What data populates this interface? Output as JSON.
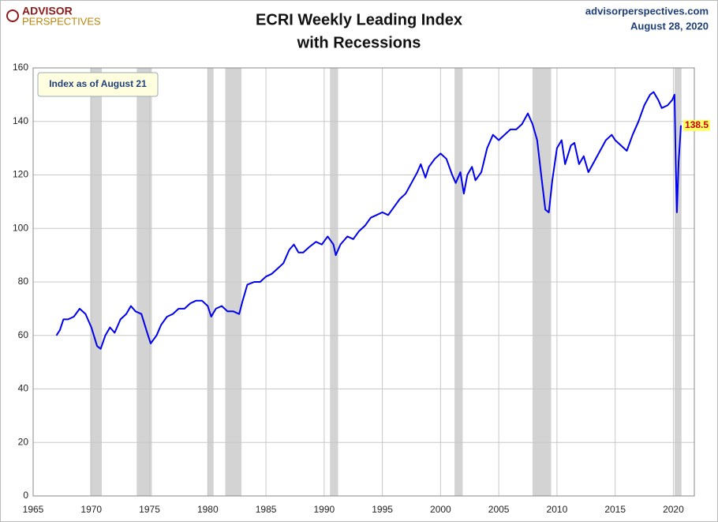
{
  "chart_data": {
    "type": "line",
    "logo": {
      "line1": "ADVISOR",
      "line2": "PERSPECTIVES"
    },
    "title": "ECRI Weekly Leading Index",
    "subtitle": "with Recessions",
    "source": "advisorperspectives.com",
    "date": "August 28, 2020",
    "annotation": "Index as of August 21",
    "xlim": [
      1965,
      2021.8
    ],
    "xticks": [
      1965,
      1970,
      1975,
      1980,
      1985,
      1990,
      1995,
      2000,
      2005,
      2010,
      2015,
      2020
    ],
    "ylim": [
      0,
      160
    ],
    "yticks": [
      0,
      20,
      40,
      60,
      80,
      100,
      120,
      140,
      160
    ],
    "grid": true,
    "recession_color": "#d3d3d3",
    "recessions": [
      [
        1969.9,
        1970.9
      ],
      [
        1973.9,
        1975.2
      ],
      [
        1980.0,
        1980.5
      ],
      [
        1981.5,
        1982.9
      ],
      [
        1990.5,
        1991.2
      ],
      [
        2001.2,
        2001.9
      ],
      [
        2007.9,
        2009.5
      ],
      [
        2020.1,
        2020.7
      ]
    ],
    "series": [
      {
        "name": "ECRI Weekly Leading Index",
        "color": "#0000ee",
        "x": [
          1967.0,
          1967.3,
          1967.6,
          1968.0,
          1968.5,
          1969.0,
          1969.5,
          1970.0,
          1970.5,
          1970.8,
          1971.2,
          1971.6,
          1972.0,
          1972.5,
          1973.0,
          1973.4,
          1973.8,
          1974.3,
          1974.8,
          1975.1,
          1975.6,
          1976.0,
          1976.5,
          1977.0,
          1977.5,
          1978.0,
          1978.5,
          1979.0,
          1979.5,
          1980.0,
          1980.3,
          1980.7,
          1981.2,
          1981.7,
          1982.2,
          1982.7,
          1983.0,
          1983.4,
          1984.0,
          1984.5,
          1985.0,
          1985.5,
          1986.0,
          1986.5,
          1987.0,
          1987.4,
          1987.8,
          1988.2,
          1988.7,
          1989.3,
          1989.8,
          1990.3,
          1990.8,
          1991.0,
          1991.4,
          1992.0,
          1992.5,
          1993.0,
          1993.5,
          1994.0,
          1994.5,
          1995.0,
          1995.5,
          1996.0,
          1996.5,
          1997.0,
          1997.5,
          1998.0,
          1998.3,
          1998.7,
          1999.0,
          1999.5,
          2000.0,
          2000.5,
          2001.0,
          2001.3,
          2001.7,
          2002.0,
          2002.3,
          2002.7,
          2003.0,
          2003.5,
          2004.0,
          2004.5,
          2005.0,
          2005.5,
          2006.0,
          2006.5,
          2007.0,
          2007.5,
          2007.9,
          2008.3,
          2008.7,
          2009.0,
          2009.3,
          2009.6,
          2010.0,
          2010.4,
          2010.7,
          2011.2,
          2011.5,
          2011.9,
          2012.3,
          2012.7,
          2013.2,
          2013.7,
          2014.2,
          2014.7,
          2015.0,
          2015.5,
          2016.0,
          2016.5,
          2017.0,
          2017.5,
          2018.0,
          2018.3,
          2018.7,
          2019.0,
          2019.5,
          2019.9,
          2020.1,
          2020.2,
          2020.3,
          2020.45,
          2020.6,
          2020.65
        ],
        "values": [
          60,
          62,
          66,
          66,
          67,
          70,
          68,
          63,
          56,
          55,
          60,
          63,
          61,
          66,
          68,
          71,
          69,
          68,
          61,
          57,
          60,
          64,
          67,
          68,
          70,
          70,
          72,
          73,
          73,
          71,
          67,
          70,
          71,
          69,
          69,
          68,
          73,
          79,
          80,
          80,
          82,
          83,
          85,
          87,
          92,
          94,
          91,
          91,
          93,
          95,
          94,
          97,
          94,
          90,
          94,
          97,
          96,
          99,
          101,
          104,
          105,
          106,
          105,
          108,
          111,
          113,
          117,
          121,
          124,
          119,
          123,
          126,
          128,
          126,
          120,
          117,
          121,
          113,
          120,
          123,
          118,
          121,
          130,
          135,
          133,
          135,
          137,
          137,
          139,
          143,
          139,
          133,
          118,
          107,
          106,
          118,
          130,
          133,
          124,
          131,
          132,
          124,
          127,
          121,
          125,
          129,
          133,
          135,
          133,
          131,
          129,
          135,
          140,
          146,
          150,
          151,
          148,
          145,
          146,
          148,
          150,
          125,
          106,
          125,
          135,
          138.5
        ]
      }
    ]
  }
}
